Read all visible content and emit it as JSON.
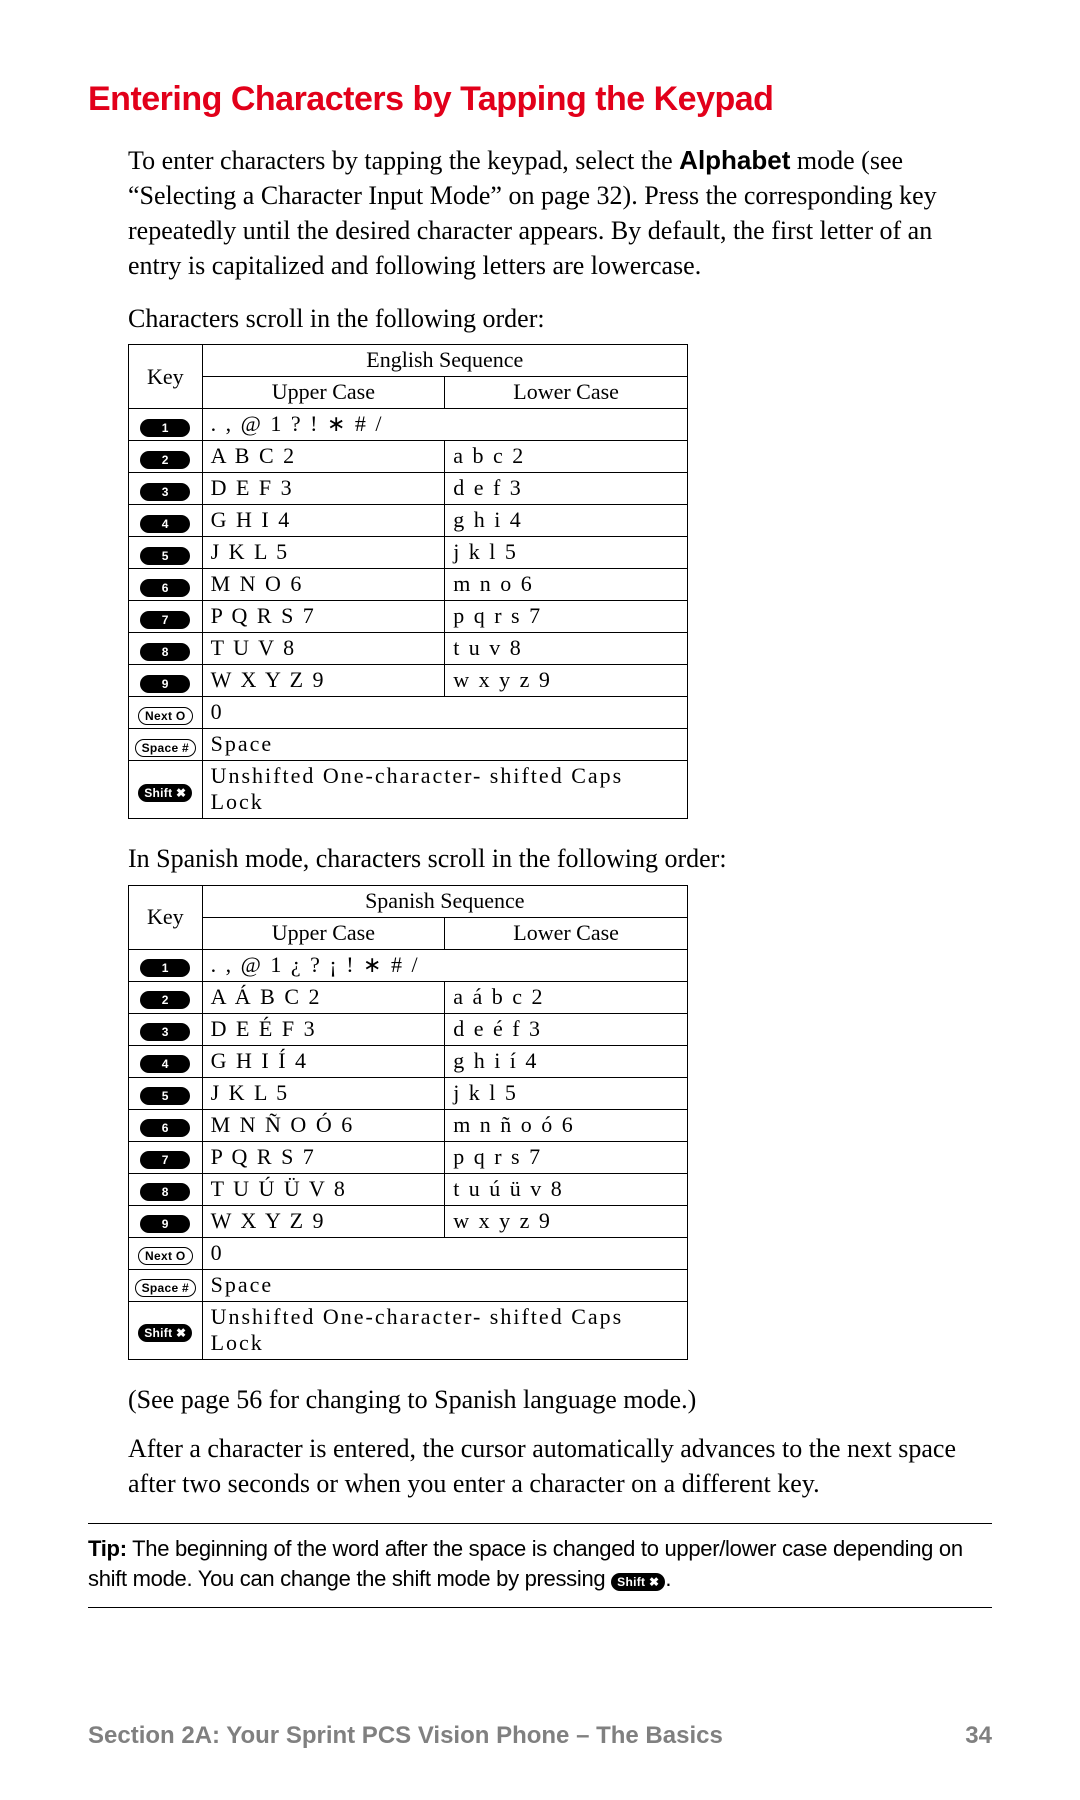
{
  "title": "Entering Characters by Tapping the Keypad",
  "intro_parts": {
    "p1a": "To enter characters by tapping the keypad, select the ",
    "p1_bold": "Alphabet",
    "p1b": " mode (see “Selecting a Character Input Mode” on page 32). Press the corresponding key repeatedly until the desired character appears. By default, the first letter of an entry is capitalized and following letters are lowercase."
  },
  "scroll_label": "Characters scroll in the following order:",
  "table_headers": {
    "key": "Key",
    "upper": "Upper Case",
    "lower": "Lower Case"
  },
  "english": {
    "seq_title": "English Sequence",
    "rows": [
      {
        "key": "1",
        "keystyle": "black",
        "span": true,
        "upper": ". , @ 1 ? ! ∗ # /",
        "lower": ""
      },
      {
        "key": "2",
        "keystyle": "black",
        "span": false,
        "upper": "A B C 2",
        "lower": "a b c 2"
      },
      {
        "key": "3",
        "keystyle": "black",
        "span": false,
        "upper": "D E F 3",
        "lower": "d e f 3"
      },
      {
        "key": "4",
        "keystyle": "black",
        "span": false,
        "upper": "G H I 4",
        "lower": "g h i 4"
      },
      {
        "key": "5",
        "keystyle": "black",
        "span": false,
        "upper": "J K L 5",
        "lower": "j k l 5"
      },
      {
        "key": "6",
        "keystyle": "black",
        "span": false,
        "upper": "M N O 6",
        "lower": "m n o 6"
      },
      {
        "key": "7",
        "keystyle": "black",
        "span": false,
        "upper": "P Q R S 7",
        "lower": "p q r s 7"
      },
      {
        "key": "8",
        "keystyle": "black",
        "span": false,
        "upper": "T U V 8",
        "lower": "t u v 8"
      },
      {
        "key": "9",
        "keystyle": "black",
        "span": false,
        "upper": "W X Y Z 9",
        "lower": "w x y z 9"
      },
      {
        "key": "Next O",
        "keystyle": "white",
        "span": true,
        "upper": "0",
        "lower": ""
      },
      {
        "key": "Space #",
        "keystyle": "white",
        "span": true,
        "upper": "Space",
        "lower": ""
      },
      {
        "key": "Shift ✖",
        "keystyle": "black",
        "span": true,
        "upper": "Unshifted  One-character- shifted  Caps Lock",
        "lower": ""
      }
    ]
  },
  "spanish_label": "In Spanish mode, characters scroll in the following order:",
  "spanish": {
    "seq_title": "Spanish Sequence",
    "rows": [
      {
        "key": "1",
        "keystyle": "black",
        "span": true,
        "upper": ". , @ 1 ¿ ? ¡ ! ∗ # /",
        "lower": ""
      },
      {
        "key": "2",
        "keystyle": "black",
        "span": false,
        "upper": "A Á B C 2",
        "lower": "a á b c 2"
      },
      {
        "key": "3",
        "keystyle": "black",
        "span": false,
        "upper": "D E É F 3",
        "lower": "d e é f 3"
      },
      {
        "key": "4",
        "keystyle": "black",
        "span": false,
        "upper": "G H I Í 4",
        "lower": "g h i í 4"
      },
      {
        "key": "5",
        "keystyle": "black",
        "span": false,
        "upper": "J K L 5",
        "lower": "j k l 5"
      },
      {
        "key": "6",
        "keystyle": "black",
        "span": false,
        "upper": "M N Ñ O Ó 6",
        "lower": "m n ñ o ó 6"
      },
      {
        "key": "7",
        "keystyle": "black",
        "span": false,
        "upper": "P Q R S 7",
        "lower": "p q r s 7"
      },
      {
        "key": "8",
        "keystyle": "black",
        "span": false,
        "upper": "T U Ú Ü V 8",
        "lower": "t u ú ü v 8"
      },
      {
        "key": "9",
        "keystyle": "black",
        "span": false,
        "upper": "W X Y Z 9",
        "lower": "w x y z 9"
      },
      {
        "key": "Next O",
        "keystyle": "white",
        "span": true,
        "upper": "0",
        "lower": ""
      },
      {
        "key": "Space #",
        "keystyle": "white",
        "span": true,
        "upper": "Space",
        "lower": ""
      },
      {
        "key": "Shift ✖",
        "keystyle": "black",
        "span": true,
        "upper": "Unshifted  One-character- shifted  Caps Lock",
        "lower": ""
      }
    ]
  },
  "see_page": "(See page 56 for changing to Spanish language mode.)",
  "after_char": "After a character is entered, the cursor automatically advances to the next space after two seconds or when you enter a character on a different key.",
  "tip": {
    "label": "Tip:",
    "text_a": " The beginning of the word after the space is changed to upper/lower case depending on shift mode. You can change the shift mode by pressing ",
    "badge": "Shift ✖",
    "text_b": "."
  },
  "footer": {
    "section": "Section 2A: Your Sprint PCS Vision Phone – The Basics",
    "page": "34"
  },
  "colors": {
    "title": "#e2001a",
    "text": "#000000",
    "footer": "#808080",
    "background": "#ffffff"
  }
}
